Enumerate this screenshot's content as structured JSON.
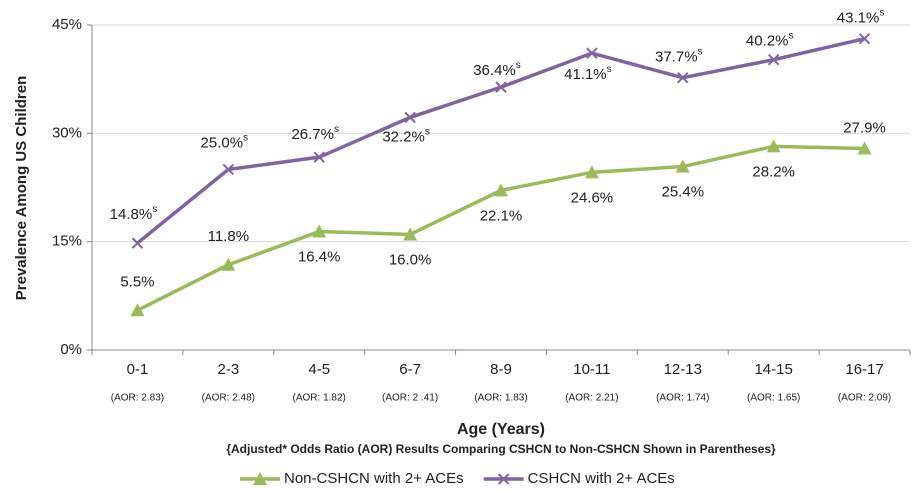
{
  "chart_data": {
    "type": "line",
    "y_axis_label": "Prevalence Among US Children",
    "x_axis_label": "Age (Years)",
    "x_axis_note": "{Adjusted* Odds Ratio (AOR) Results Comparing CSHCN to Non-CSHCN Shown in Parentheses}",
    "categories": [
      "0-1",
      "2-3",
      "4-5",
      "6-7",
      "8-9",
      "10-11",
      "12-13",
      "14-15",
      "16-17"
    ],
    "category_notes": [
      "(AOR: 2.83)",
      "(AOR: 2.48)",
      "(AOR: 1.82)",
      "(AOR: 2 .41)",
      "(AOR: 1.83)",
      "(AOR:  2.21)",
      "(AOR: 1.74)",
      "(AOR: 1.65)",
      "(AOR: 2.09)"
    ],
    "series": [
      {
        "name": "Non-CSHCN with 2+ ACEs",
        "color": "#9bbb59",
        "marker": "triangle",
        "values": [
          5.5,
          11.8,
          16.4,
          16.0,
          22.1,
          24.6,
          25.4,
          28.2,
          27.9
        ],
        "value_labels": [
          "5.5%",
          "11.8%",
          "16.4%",
          "16.0%",
          "22.1%",
          "24.6%",
          "25.4%",
          "28.2%",
          "27.9%"
        ]
      },
      {
        "name": "CSHCN with 2+ ACEs",
        "color": "#8064a2",
        "marker": "x",
        "values": [
          14.8,
          25.0,
          26.7,
          32.2,
          36.4,
          41.1,
          37.7,
          40.2,
          43.1
        ],
        "value_labels": [
          "14.8%",
          "25.0%",
          "26.7%",
          "32.2%",
          "36.4%",
          "41.1%",
          "37.7%",
          "40.2%",
          "43.1%"
        ],
        "label_superscript": "s"
      }
    ],
    "ylim": [
      0,
      45
    ],
    "yticks": [
      {
        "value": 0,
        "label": "0%"
      },
      {
        "value": 15,
        "label": "15%"
      },
      {
        "value": 30,
        "label": "30%"
      },
      {
        "value": 45,
        "label": "45%"
      }
    ],
    "grid": true,
    "legend": "bottom"
  }
}
